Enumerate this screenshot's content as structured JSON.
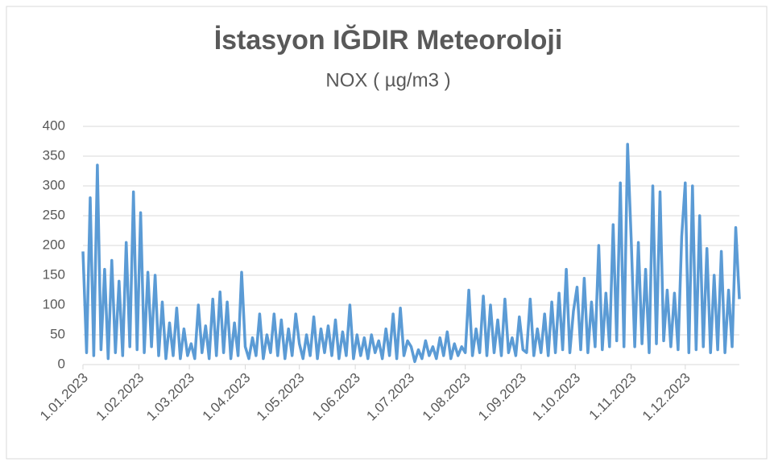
{
  "chart_data": {
    "type": "line",
    "title": "İstasyon IĞDIR Meteoroloji",
    "subtitle": "NOX ( µg/m3 )",
    "x": [
      0,
      2,
      4,
      6,
      8,
      10,
      12,
      14,
      16,
      18,
      20,
      22,
      24,
      26,
      28,
      30,
      32,
      34,
      36,
      38,
      40,
      42,
      44,
      46,
      48,
      50,
      52,
      54,
      56,
      58,
      60,
      62,
      64,
      66,
      68,
      70,
      72,
      74,
      76,
      78,
      80,
      82,
      84,
      86,
      88,
      90,
      92,
      94,
      96,
      98,
      100,
      102,
      104,
      106,
      108,
      110,
      112,
      114,
      116,
      118,
      120,
      122,
      124,
      126,
      128,
      130,
      132,
      134,
      136,
      138,
      140,
      142,
      144,
      146,
      148,
      150,
      152,
      154,
      156,
      158,
      160,
      162,
      164,
      166,
      168,
      170,
      172,
      174,
      176,
      178,
      180,
      182,
      184,
      186,
      188,
      190,
      192,
      194,
      196,
      198,
      200,
      202,
      204,
      206,
      208,
      210,
      212,
      214,
      216,
      218,
      220,
      222,
      224,
      226,
      228,
      230,
      232,
      234,
      236,
      238,
      240,
      242,
      244,
      246,
      248,
      250,
      252,
      254,
      256,
      258,
      260,
      262,
      264,
      266,
      268,
      270,
      272,
      274,
      276,
      278,
      280,
      282,
      284,
      286,
      288,
      290,
      292,
      294,
      296,
      298,
      300,
      302,
      304,
      306,
      308,
      310,
      312,
      314,
      316,
      318,
      320,
      322,
      324,
      326,
      328,
      330,
      332,
      334,
      336,
      338,
      340,
      342,
      344,
      346,
      348,
      350,
      352,
      354,
      356,
      358,
      360,
      362,
      364
    ],
    "values": [
      190,
      20,
      280,
      15,
      335,
      25,
      160,
      10,
      175,
      20,
      140,
      15,
      205,
      30,
      290,
      25,
      255,
      20,
      155,
      30,
      150,
      15,
      105,
      10,
      70,
      15,
      95,
      10,
      60,
      15,
      35,
      10,
      100,
      20,
      65,
      10,
      110,
      15,
      122,
      20,
      105,
      10,
      70,
      15,
      155,
      30,
      10,
      45,
      15,
      85,
      10,
      50,
      20,
      85,
      15,
      75,
      10,
      60,
      15,
      85,
      35,
      10,
      50,
      15,
      80,
      10,
      60,
      20,
      65,
      15,
      75,
      10,
      55,
      15,
      100,
      10,
      50,
      15,
      45,
      10,
      50,
      20,
      40,
      10,
      60,
      15,
      85,
      10,
      95,
      15,
      40,
      30,
      5,
      25,
      10,
      40,
      15,
      30,
      10,
      45,
      15,
      55,
      10,
      35,
      15,
      30,
      20,
      125,
      15,
      60,
      20,
      115,
      15,
      100,
      20,
      75,
      15,
      110,
      20,
      45,
      15,
      80,
      25,
      20,
      110,
      15,
      60,
      20,
      85,
      15,
      105,
      20,
      120,
      25,
      160,
      20,
      90,
      130,
      25,
      145,
      20,
      105,
      30,
      200,
      25,
      120,
      30,
      235,
      40,
      305,
      30,
      370,
      210,
      30,
      205,
      35,
      160,
      20,
      300,
      35,
      290,
      40,
      125,
      30,
      120,
      25,
      215,
      305,
      20,
      300,
      25,
      250,
      30,
      195,
      20,
      150,
      25,
      190,
      20,
      125,
      30,
      230,
      110
    ],
    "color": "#5b9bd5",
    "xlim": [
      0,
      364
    ],
    "xticks": [
      {
        "value": 0,
        "label": "1.01.2023"
      },
      {
        "value": 31,
        "label": "1.02.2023"
      },
      {
        "value": 59,
        "label": "1.03.2023"
      },
      {
        "value": 90,
        "label": "1.04.2023"
      },
      {
        "value": 120,
        "label": "1.05.2023"
      },
      {
        "value": 151,
        "label": "1.06.2023"
      },
      {
        "value": 181,
        "label": "1.07.2023"
      },
      {
        "value": 212,
        "label": "1.08.2023"
      },
      {
        "value": 243,
        "label": "1.09.2023"
      },
      {
        "value": 273,
        "label": "1.10.2023"
      },
      {
        "value": 304,
        "label": "1.11.2023"
      },
      {
        "value": 334,
        "label": "1.12.2023"
      }
    ],
    "ylim": [
      0,
      400
    ],
    "yticks": [
      0,
      50,
      100,
      150,
      200,
      250,
      300,
      350,
      400
    ],
    "grid": true
  }
}
